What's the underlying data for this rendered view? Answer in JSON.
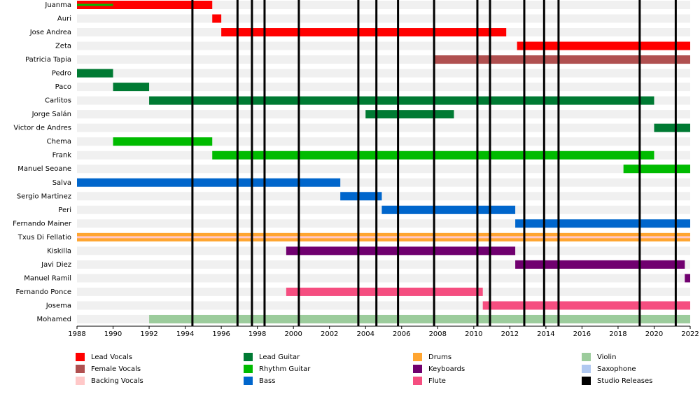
{
  "chart_data": {
    "type": "timeline",
    "xlim": [
      1988,
      2022
    ],
    "xticks": [
      1988,
      1990,
      1992,
      1994,
      1996,
      1998,
      2000,
      2002,
      2004,
      2006,
      2008,
      2010,
      2012,
      2014,
      2016,
      2018,
      2020,
      2022
    ],
    "roles": [
      {
        "name": "Lead Vocals",
        "color": "#ff0000"
      },
      {
        "name": "Female Vocals",
        "color": "#b05050"
      },
      {
        "name": "Backing Vocals",
        "color": "#ffc8c8"
      },
      {
        "name": "Lead Guitar",
        "color": "#007a33"
      },
      {
        "name": "Rhythm Guitar",
        "color": "#00bb00"
      },
      {
        "name": "Bass",
        "color": "#0066cc"
      },
      {
        "name": "Drums",
        "color": "#ffa530"
      },
      {
        "name": "Keyboards",
        "color": "#70006f"
      },
      {
        "name": "Flute",
        "color": "#f54e80"
      },
      {
        "name": "Violin",
        "color": "#9ccc9c"
      },
      {
        "name": "Saxophone",
        "color": "#b0c8f0"
      },
      {
        "name": "Studio Releases",
        "color": "#000000"
      }
    ],
    "releases": [
      1994.4,
      1996.9,
      1997.7,
      1998.4,
      2000.3,
      2003.6,
      2004.6,
      2005.8,
      2007.8,
      2010.2,
      2010.9,
      2012.8,
      2013.9,
      2014.7,
      2019.2,
      2021.2
    ],
    "members": [
      {
        "name": "Juanma",
        "bars": [
          {
            "role": "Lead Vocals",
            "start": 1988,
            "end": 1995.5
          },
          {
            "role": "Rhythm Guitar",
            "start": 1988,
            "end": 1990,
            "thin": true
          }
        ]
      },
      {
        "name": "Auri",
        "bars": [
          {
            "role": "Lead Vocals",
            "start": 1995.5,
            "end": 1996
          }
        ]
      },
      {
        "name": "Jose Andrea",
        "bars": [
          {
            "role": "Lead Vocals",
            "start": 1996,
            "end": 2011.8
          }
        ]
      },
      {
        "name": "Zeta",
        "bars": [
          {
            "role": "Lead Vocals",
            "start": 2012.4,
            "end": 2022
          }
        ]
      },
      {
        "name": "Patricia Tapia",
        "bars": [
          {
            "role": "Female Vocals",
            "start": 2007.8,
            "end": 2022
          }
        ]
      },
      {
        "name": "Pedro",
        "bars": [
          {
            "role": "Lead Guitar",
            "start": 1988,
            "end": 1990
          }
        ]
      },
      {
        "name": "Paco",
        "bars": [
          {
            "role": "Lead Guitar",
            "start": 1990,
            "end": 1992
          }
        ]
      },
      {
        "name": "Carlitos",
        "bars": [
          {
            "role": "Lead Guitar",
            "start": 1992,
            "end": 2020
          }
        ]
      },
      {
        "name": "Jorge Salán",
        "bars": [
          {
            "role": "Lead Guitar",
            "start": 2004,
            "end": 2008.9
          }
        ]
      },
      {
        "name": "Victor de Andres",
        "bars": [
          {
            "role": "Lead Guitar",
            "start": 2020,
            "end": 2022
          }
        ]
      },
      {
        "name": "Chema",
        "bars": [
          {
            "role": "Rhythm Guitar",
            "start": 1990,
            "end": 1995.5
          }
        ]
      },
      {
        "name": "Frank",
        "bars": [
          {
            "role": "Rhythm Guitar",
            "start": 1995.5,
            "end": 2020
          }
        ]
      },
      {
        "name": "Manuel Seoane",
        "bars": [
          {
            "role": "Rhythm Guitar",
            "start": 2018.3,
            "end": 2022
          }
        ]
      },
      {
        "name": "Salva",
        "bars": [
          {
            "role": "Bass",
            "start": 1988,
            "end": 2002.6
          }
        ]
      },
      {
        "name": "Sergio Martinez",
        "bars": [
          {
            "role": "Bass",
            "start": 2002.6,
            "end": 2004.9
          }
        ]
      },
      {
        "name": "Peri",
        "bars": [
          {
            "role": "Bass",
            "start": 2004.9,
            "end": 2012.3
          }
        ]
      },
      {
        "name": "Fernando Mainer",
        "bars": [
          {
            "role": "Bass",
            "start": 2012.3,
            "end": 2022
          }
        ]
      },
      {
        "name": "Txus Di Fellatio",
        "bars": [
          {
            "role": "Drums",
            "start": 1988,
            "end": 2022
          },
          {
            "role": "Backing Vocals",
            "start": 1988,
            "end": 2022,
            "thin": true
          }
        ]
      },
      {
        "name": "Kiskilla",
        "bars": [
          {
            "role": "Keyboards",
            "start": 1999.6,
            "end": 2012.3
          }
        ]
      },
      {
        "name": "Javi Diez",
        "bars": [
          {
            "role": "Keyboards",
            "start": 2012.3,
            "end": 2021.7
          }
        ]
      },
      {
        "name": "Manuel Ramil",
        "bars": [
          {
            "role": "Keyboards",
            "start": 2021.7,
            "end": 2022
          }
        ]
      },
      {
        "name": "Fernando Ponce",
        "bars": [
          {
            "role": "Flute",
            "start": 1999.6,
            "end": 2010.5
          }
        ]
      },
      {
        "name": "Josema",
        "bars": [
          {
            "role": "Flute",
            "start": 2010.5,
            "end": 2022
          }
        ]
      },
      {
        "name": "Mohamed",
        "bars": [
          {
            "role": "Violin",
            "start": 1992,
            "end": 2022
          }
        ]
      }
    ]
  }
}
